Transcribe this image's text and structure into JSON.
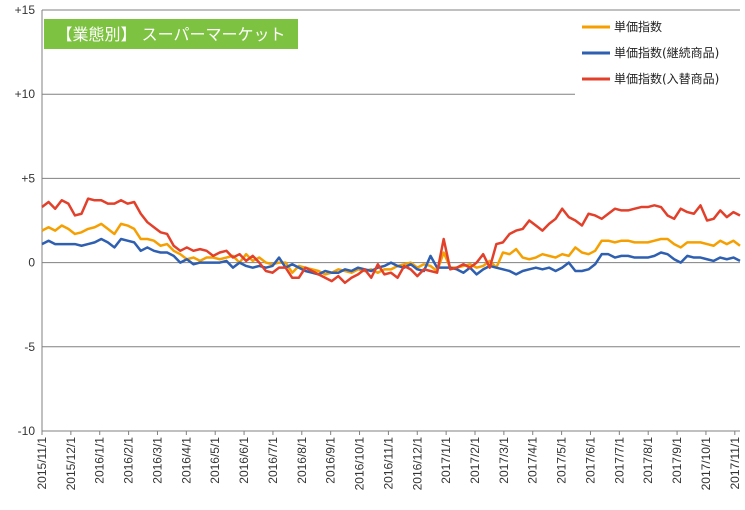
{
  "chart_data": {
    "type": "line",
    "title": "【業態別】 スーパーマーケット",
    "badge_color": "#7dc241",
    "ylim": [
      -10,
      15
    ],
    "yticks": [
      {
        "value": 15,
        "label": "+15"
      },
      {
        "value": 10,
        "label": "+10"
      },
      {
        "value": 5,
        "label": "+5"
      },
      {
        "value": 0,
        "label": "0"
      },
      {
        "value": -5,
        "label": "-5"
      },
      {
        "value": -10,
        "label": "-10"
      }
    ],
    "x_tick_labels": [
      "2015/11/1",
      "2015/12/1",
      "2016/1/1",
      "2016/2/1",
      "2016/3/1",
      "2016/4/1",
      "2016/5/1",
      "2016/6/1",
      "2016/7/1",
      "2016/8/1",
      "2016/9/1",
      "2016/10/1",
      "2016/11/1",
      "2016/12/1",
      "2017/1/1",
      "2017/2/1",
      "2017/3/1",
      "2017/4/1",
      "2017/5/1",
      "2017/6/1",
      "2017/7/1",
      "2017/8/1",
      "2017/9/1",
      "2017/10/1",
      "2017/11/1"
    ],
    "grid": "horizontal",
    "legend_position": "top-right",
    "series": [
      {
        "name": "単価指数",
        "color": "#f5a000",
        "values": [
          1.9,
          2.1,
          1.9,
          2.2,
          2.0,
          1.7,
          1.8,
          2.0,
          2.1,
          2.3,
          2.0,
          1.7,
          2.3,
          2.2,
          2.0,
          1.4,
          1.4,
          1.3,
          1.0,
          1.1,
          0.7,
          0.5,
          0.2,
          0.3,
          0.1,
          0.3,
          0.3,
          0.2,
          0.3,
          0.4,
          0.0,
          0.5,
          0.1,
          0.3,
          0.0,
          -0.1,
          0.0,
          0.0,
          -0.6,
          -0.2,
          -0.3,
          -0.4,
          -0.5,
          -0.7,
          -0.6,
          -0.4,
          -0.5,
          -0.6,
          -0.4,
          -0.5,
          -0.4,
          -0.6,
          -0.4,
          -0.4,
          -0.2,
          -0.1,
          0.0,
          -0.3,
          -0.1,
          -0.2,
          -0.5,
          0.6,
          -0.3,
          -0.3,
          -0.2,
          -0.1,
          -0.3,
          -0.2,
          0.1,
          -0.3,
          0.6,
          0.5,
          0.8,
          0.3,
          0.2,
          0.3,
          0.5,
          0.4,
          0.3,
          0.5,
          0.4,
          0.9,
          0.6,
          0.5,
          0.7,
          1.3,
          1.3,
          1.2,
          1.3,
          1.3,
          1.2,
          1.2,
          1.2,
          1.3,
          1.4,
          1.4,
          1.1,
          0.9,
          1.2,
          1.2,
          1.2,
          1.1,
          1.0,
          1.3,
          1.1,
          1.3,
          1.0
        ]
      },
      {
        "name": "単価指数(継続商品)",
        "color": "#2e5fb0",
        "values": [
          1.1,
          1.3,
          1.1,
          1.1,
          1.1,
          1.1,
          1.0,
          1.1,
          1.2,
          1.4,
          1.2,
          0.9,
          1.4,
          1.3,
          1.2,
          0.7,
          0.9,
          0.7,
          0.6,
          0.6,
          0.4,
          0.0,
          0.2,
          -0.1,
          0.0,
          0.0,
          0.0,
          0.0,
          0.1,
          -0.3,
          0.0,
          -0.2,
          -0.3,
          -0.2,
          -0.3,
          -0.2,
          0.3,
          -0.3,
          -0.1,
          -0.3,
          -0.5,
          -0.6,
          -0.7,
          -0.5,
          -0.6,
          -0.6,
          -0.4,
          -0.5,
          -0.3,
          -0.4,
          -0.5,
          -0.3,
          -0.2,
          0.0,
          -0.2,
          -0.3,
          -0.1,
          -0.4,
          -0.5,
          0.4,
          -0.3,
          -0.3,
          -0.3,
          -0.4,
          -0.6,
          -0.3,
          -0.7,
          -0.4,
          -0.2,
          -0.3,
          -0.4,
          -0.5,
          -0.7,
          -0.5,
          -0.4,
          -0.3,
          -0.4,
          -0.3,
          -0.5,
          -0.3,
          0.0,
          -0.5,
          -0.5,
          -0.4,
          -0.1,
          0.5,
          0.5,
          0.3,
          0.4,
          0.4,
          0.3,
          0.3,
          0.3,
          0.4,
          0.6,
          0.5,
          0.2,
          0.0,
          0.4,
          0.3,
          0.3,
          0.2,
          0.1,
          0.3,
          0.2,
          0.3,
          0.1
        ]
      },
      {
        "name": "単価指数(入替商品)",
        "color": "#e2402a",
        "values": [
          3.3,
          3.6,
          3.2,
          3.7,
          3.5,
          2.8,
          2.9,
          3.8,
          3.7,
          3.7,
          3.5,
          3.5,
          3.7,
          3.5,
          3.6,
          2.9,
          2.4,
          2.1,
          1.8,
          1.7,
          1.0,
          0.7,
          0.9,
          0.7,
          0.8,
          0.7,
          0.4,
          0.6,
          0.7,
          0.3,
          0.5,
          0.1,
          0.4,
          0.0,
          -0.5,
          -0.6,
          -0.3,
          -0.3,
          -0.9,
          -0.9,
          -0.3,
          -0.5,
          -0.7,
          -0.9,
          -1.1,
          -0.8,
          -1.2,
          -0.9,
          -0.7,
          -0.4,
          -0.9,
          -0.1,
          -0.7,
          -0.6,
          -0.9,
          -0.2,
          -0.4,
          -0.8,
          -0.4,
          -0.5,
          -0.6,
          1.4,
          -0.4,
          -0.3,
          -0.1,
          -0.3,
          0.0,
          0.5,
          -0.3,
          1.1,
          1.2,
          1.7,
          1.9,
          2.0,
          2.5,
          2.2,
          1.9,
          2.3,
          2.6,
          3.2,
          2.7,
          2.5,
          2.2,
          2.9,
          2.8,
          2.6,
          2.9,
          3.2,
          3.1,
          3.1,
          3.2,
          3.3,
          3.3,
          3.4,
          3.3,
          2.8,
          2.6,
          3.2,
          3.0,
          2.9,
          3.4,
          2.5,
          2.6,
          3.1,
          2.7,
          3.0,
          2.8
        ]
      }
    ]
  }
}
